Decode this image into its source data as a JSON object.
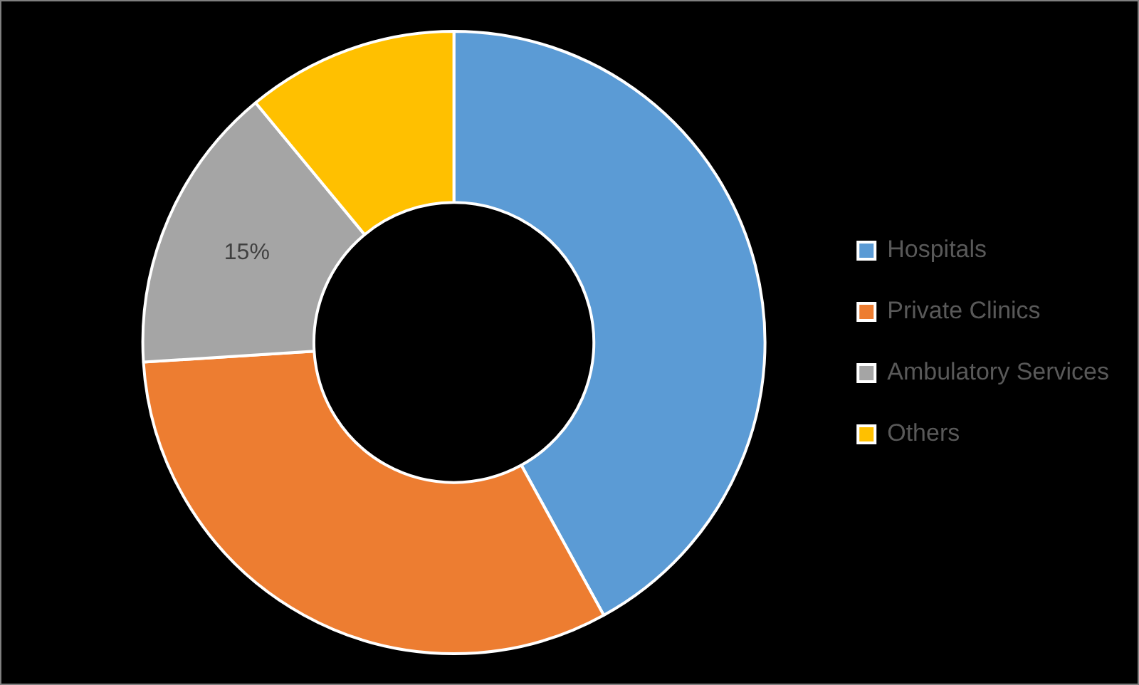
{
  "chart_data": {
    "type": "donut",
    "categories": [
      "Hospitals",
      "Private Clinics",
      "Ambulatory Services",
      "Others"
    ],
    "values": [
      42,
      32,
      15,
      11
    ],
    "colors": [
      "#5b9bd5",
      "#ed7d31",
      "#a5a5a5",
      "#ffc000"
    ],
    "value_labels": [
      null,
      null,
      "15%",
      null
    ],
    "legend": "right"
  }
}
